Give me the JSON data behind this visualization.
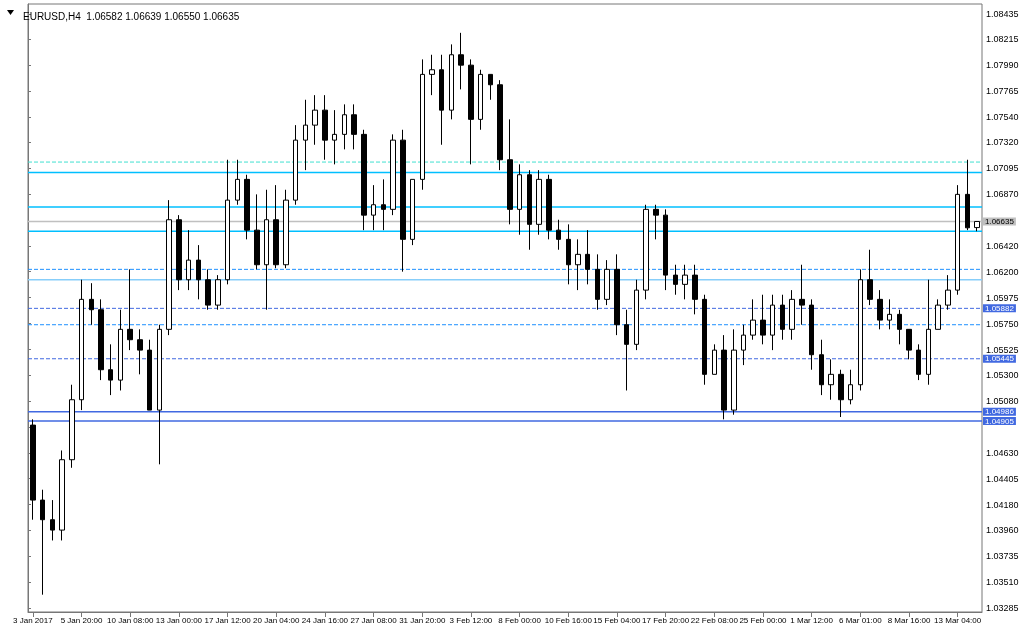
{
  "chart_data": {
    "type": "candlestick",
    "title": "EURUSD,H4  1.06582 1.06639 1.06550 1.06635",
    "color": "#000000",
    "categories": [
      "3 Jan 2017",
      null,
      null,
      null,
      null,
      "5 Jan 20:00",
      null,
      null,
      null,
      null,
      "10 Jan 08:00",
      null,
      null,
      null,
      null,
      "13 Jan 00:00",
      null,
      null,
      null,
      null,
      "17 Jan 12:00",
      null,
      null,
      null,
      null,
      "20 Jan 04:00",
      null,
      null,
      null,
      null,
      "24 Jan 16:00",
      null,
      null,
      null,
      null,
      "27 Jan 08:00",
      null,
      null,
      null,
      null,
      "31 Jan 20:00",
      null,
      null,
      null,
      null,
      "3 Feb 12:00",
      null,
      null,
      null,
      null,
      "8 Feb 00:00",
      null,
      null,
      null,
      null,
      "10 Feb 16:00",
      null,
      null,
      null,
      null,
      "15 Feb 04:00",
      null,
      null,
      null,
      null,
      "17 Feb 20:00",
      null,
      null,
      null,
      null,
      "22 Feb 08:00",
      null,
      null,
      null,
      null,
      "25 Feb 00:00",
      null,
      null,
      null,
      null,
      "1 Mar 12:00",
      null,
      null,
      null,
      null,
      "6 Mar 01:00",
      null,
      null,
      null,
      null,
      "8 Mar 16:00",
      null,
      null,
      null,
      null,
      "13 Mar 04:00",
      null,
      null
    ],
    "ohlc": [
      [
        1.0487,
        1.0492,
        1.0405,
        1.0422
      ],
      [
        1.0422,
        1.0431,
        1.034,
        1.0405
      ],
      [
        1.0405,
        1.0422,
        1.0387,
        1.0396
      ],
      [
        1.0396,
        1.0465,
        1.0387,
        1.0457
      ],
      [
        1.0457,
        1.0522,
        1.045,
        1.0509
      ],
      [
        1.0509,
        1.0613,
        1.05,
        1.0596
      ],
      [
        1.0596,
        1.061,
        1.0574,
        1.0587
      ],
      [
        1.0587,
        1.0596,
        1.0526,
        1.0535
      ],
      [
        1.0535,
        1.0557,
        1.0513,
        1.0526
      ],
      [
        1.0526,
        1.0587,
        1.0517,
        1.057
      ],
      [
        1.057,
        1.0622,
        1.0552,
        1.0561
      ],
      [
        1.0561,
        1.057,
        1.0531,
        1.0552
      ],
      [
        1.0552,
        1.0561,
        1.05,
        1.05
      ],
      [
        1.05,
        1.0574,
        1.0453,
        1.057
      ],
      [
        1.057,
        1.0682,
        1.0565,
        1.0665
      ],
      [
        1.0665,
        1.0669,
        1.0604,
        1.0613
      ],
      [
        1.0613,
        1.0656,
        1.0604,
        1.063
      ],
      [
        1.063,
        1.0643,
        1.0596,
        1.0613
      ],
      [
        1.0613,
        1.0622,
        1.0587,
        1.0591
      ],
      [
        1.0591,
        1.0617,
        1.0587,
        1.0613
      ],
      [
        1.0613,
        1.0717,
        1.0609,
        1.0682
      ],
      [
        1.0682,
        1.0717,
        1.0678,
        1.07
      ],
      [
        1.07,
        1.0704,
        1.0648,
        1.0656
      ],
      [
        1.0656,
        1.0687,
        1.0622,
        1.0626
      ],
      [
        1.0626,
        1.0691,
        1.0587,
        1.0665
      ],
      [
        1.0665,
        1.0695,
        1.0623,
        1.0626
      ],
      [
        1.0626,
        1.0691,
        1.0623,
        1.0682
      ],
      [
        1.0682,
        1.0747,
        1.0678,
        1.0734
      ],
      [
        1.0734,
        1.0769,
        1.0708,
        1.0747
      ],
      [
        1.0747,
        1.0773,
        1.073,
        1.076
      ],
      [
        1.076,
        1.0773,
        1.0717,
        1.0734
      ],
      [
        1.0734,
        1.076,
        1.0713,
        1.0739
      ],
      [
        1.0739,
        1.0765,
        1.0726,
        1.0756
      ],
      [
        1.0756,
        1.0765,
        1.0726,
        1.0739
      ],
      [
        1.0739,
        1.0743,
        1.0656,
        1.0669
      ],
      [
        1.0669,
        1.0695,
        1.0656,
        1.0678
      ],
      [
        1.0678,
        1.07,
        1.0656,
        1.0674
      ],
      [
        1.0674,
        1.0739,
        1.0669,
        1.0734
      ],
      [
        1.0734,
        1.0743,
        1.062,
        1.0648
      ],
      [
        1.0648,
        1.07,
        1.0643,
        1.07
      ],
      [
        1.07,
        1.0804,
        1.0691,
        1.0791
      ],
      [
        1.0791,
        1.0808,
        1.0773,
        1.0795
      ],
      [
        1.0795,
        1.0808,
        1.073,
        1.076
      ],
      [
        1.076,
        1.0817,
        1.0752,
        1.0808
      ],
      [
        1.0808,
        1.0827,
        1.0778,
        1.0799
      ],
      [
        1.0799,
        1.0804,
        1.0713,
        1.0752
      ],
      [
        1.0752,
        1.0795,
        1.0743,
        1.0791
      ],
      [
        1.0791,
        1.0791,
        1.0769,
        1.0782
      ],
      [
        1.0782,
        1.0786,
        1.0708,
        1.0717
      ],
      [
        1.0717,
        1.0752,
        1.0661,
        1.0674
      ],
      [
        1.0674,
        1.0713,
        1.0652,
        1.0704
      ],
      [
        1.0704,
        1.0708,
        1.0639,
        1.0661
      ],
      [
        1.0661,
        1.0708,
        1.0652,
        1.07
      ],
      [
        1.07,
        1.0704,
        1.0648,
        1.0656
      ],
      [
        1.0656,
        1.0665,
        1.0639,
        1.0648
      ],
      [
        1.0648,
        1.0661,
        1.0609,
        1.0626
      ],
      [
        1.0626,
        1.0648,
        1.0604,
        1.0635
      ],
      [
        1.0635,
        1.0656,
        1.0609,
        1.0622
      ],
      [
        1.0622,
        1.0635,
        1.0587,
        1.0596
      ],
      [
        1.0596,
        1.063,
        1.0591,
        1.0622
      ],
      [
        1.0622,
        1.0635,
        1.0565,
        1.0574
      ],
      [
        1.0574,
        1.0587,
        1.0517,
        1.0557
      ],
      [
        1.0557,
        1.0613,
        1.0552,
        1.0604
      ],
      [
        1.0604,
        1.0678,
        1.0596,
        1.0674
      ],
      [
        1.0674,
        1.0678,
        1.0648,
        1.0669
      ],
      [
        1.0669,
        1.0674,
        1.0604,
        1.0617
      ],
      [
        1.0617,
        1.0626,
        1.06,
        1.0609
      ],
      [
        1.0609,
        1.0626,
        1.0596,
        1.0617
      ],
      [
        1.0617,
        1.0626,
        1.0583,
        1.0596
      ],
      [
        1.0596,
        1.06,
        1.0522,
        1.0531
      ],
      [
        1.0531,
        1.0557,
        1.0531,
        1.0552
      ],
      [
        1.0552,
        1.0565,
        1.0492,
        1.05
      ],
      [
        1.05,
        1.057,
        1.0496,
        1.0552
      ],
      [
        1.0552,
        1.0574,
        1.0539,
        1.0565
      ],
      [
        1.0565,
        1.0596,
        1.0561,
        1.0578
      ],
      [
        1.0578,
        1.06,
        1.0557,
        1.0565
      ],
      [
        1.0565,
        1.06,
        1.0552,
        1.0591
      ],
      [
        1.0591,
        1.06,
        1.0561,
        1.057
      ],
      [
        1.057,
        1.0604,
        1.0561,
        1.0596
      ],
      [
        1.0596,
        1.0626,
        1.0574,
        1.0591
      ],
      [
        1.0591,
        1.0596,
        1.0535,
        1.0548
      ],
      [
        1.0548,
        1.0561,
        1.0513,
        1.0522
      ],
      [
        1.0522,
        1.0544,
        1.0509,
        1.0531
      ],
      [
        1.0531,
        1.0535,
        1.0494,
        1.0509
      ],
      [
        1.0509,
        1.0535,
        1.0505,
        1.0522
      ],
      [
        1.0522,
        1.0622,
        1.0517,
        1.0613
      ],
      [
        1.0613,
        1.0639,
        1.0591,
        1.0596
      ],
      [
        1.0596,
        1.0604,
        1.057,
        1.0578
      ],
      [
        1.0578,
        1.0596,
        1.057,
        1.0583
      ],
      [
        1.0583,
        1.0587,
        1.0557,
        1.057
      ],
      [
        1.057,
        1.057,
        1.0544,
        1.0552
      ],
      [
        1.0552,
        1.0557,
        1.0526,
        1.0531
      ],
      [
        1.0531,
        1.0613,
        1.0522,
        1.057
      ],
      [
        1.057,
        1.0596,
        1.057,
        1.0591
      ],
      [
        1.0591,
        1.0617,
        1.0587,
        1.0604
      ],
      [
        1.0604,
        1.0695,
        1.06,
        1.0687
      ],
      [
        1.0687,
        1.0717,
        1.0656,
        1.0658
      ],
      [
        1.06582,
        1.06639,
        1.0655,
        1.06635
      ]
    ],
    "ylim": [
      1.0325,
      1.0852
    ],
    "yticks": [
      {
        "value": 1.03285,
        "label": "1.03285"
      },
      {
        "value": 1.0351,
        "label": "1.03510"
      },
      {
        "value": 1.03735,
        "label": "1.03735"
      },
      {
        "value": 1.0396,
        "label": "1.03960"
      },
      {
        "value": 1.0418,
        "label": "1.04180"
      },
      {
        "value": 1.04405,
        "label": "1.04405"
      },
      {
        "value": 1.0463,
        "label": "1.04630"
      },
      {
        "value": 1.04855,
        "label": null
      },
      {
        "value": 1.0508,
        "label": "1.05080"
      },
      {
        "value": 1.053,
        "label": "1.05300"
      },
      {
        "value": 1.05525,
        "label": "1.05525"
      },
      {
        "value": 1.0575,
        "label": "1.05750"
      },
      {
        "value": 1.05975,
        "label": "1.05975"
      },
      {
        "value": 1.062,
        "label": "1.06200"
      },
      {
        "value": 1.0642,
        "label": "1.06420"
      },
      {
        "value": 1.0687,
        "label": "1.06870"
      },
      {
        "value": 1.07095,
        "label": "1.07095"
      },
      {
        "value": 1.0732,
        "label": "1.07320"
      },
      {
        "value": 1.0754,
        "label": "1.07540"
      },
      {
        "value": 1.07765,
        "label": "1.07765"
      },
      {
        "value": 1.0799,
        "label": "1.07990"
      },
      {
        "value": 1.08215,
        "label": "1.08215"
      },
      {
        "value": 1.08435,
        "label": "1.08435"
      }
    ],
    "ref_lines": [
      {
        "axis": "y",
        "value": 1.0715,
        "color": "#40e0d0",
        "line_style": "dashed"
      },
      {
        "axis": "y",
        "value": 1.0706,
        "color": "#00bfff",
        "line_style": "solid"
      },
      {
        "axis": "y",
        "value": 1.0676,
        "color": "#00bfff",
        "line_style": "solid"
      },
      {
        "axis": "y",
        "value": 1.06635,
        "label": "1.06635",
        "color": "#c0c0c0",
        "line_style": "solid"
      },
      {
        "axis": "y",
        "value": 1.0655,
        "color": "#00bfff",
        "line_style": "solid"
      },
      {
        "axis": "y",
        "value": 1.0622,
        "color": "#1e90ff",
        "line_style": "dashed"
      },
      {
        "axis": "y",
        "value": 1.0613,
        "color": "#87cefa",
        "line_style": "solid"
      },
      {
        "axis": "y",
        "value": 1.05882,
        "label": "1.05882",
        "color": "#4169e1",
        "line_style": "dashed"
      },
      {
        "axis": "y",
        "value": 1.0574,
        "color": "#1e90ff",
        "line_style": "dashed"
      },
      {
        "axis": "y",
        "value": 1.05445,
        "label": "1.05445",
        "color": "#4169e1",
        "line_style": "dashed"
      },
      {
        "axis": "y",
        "value": 1.04986,
        "label": "1.04986",
        "color": "#4169e1",
        "line_style": "solid"
      },
      {
        "axis": "y",
        "value": 1.04905,
        "label": "1.04905",
        "color": "#4169e1",
        "line_style": "solid"
      }
    ]
  }
}
